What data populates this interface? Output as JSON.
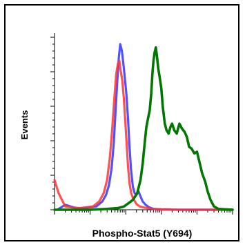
{
  "chart_data": {
    "type": "line",
    "subtype": "flow-cytometry-histogram",
    "title": "",
    "xlabel": "Phospho-Stat5 (Y694)",
    "ylabel": "Events",
    "x_scale": "log",
    "x_decades": [
      1,
      10,
      100,
      1000,
      10000,
      100000
    ],
    "xlim": [
      1,
      100000
    ],
    "ylim": [
      0,
      100
    ],
    "grid": false,
    "legend": "none",
    "colors": {
      "blue": "#3333ff",
      "red": "#ff3333",
      "green": "#007700"
    },
    "series": [
      {
        "color": "blue",
        "x": [
          1.2,
          2,
          4,
          7,
          10,
          15,
          22,
          28,
          34,
          40,
          46,
          52,
          58,
          64,
          70,
          78,
          86,
          94,
          104,
          116,
          126,
          140,
          158,
          178,
          200,
          230,
          260,
          300,
          360,
          450,
          600,
          1000,
          3000,
          100000
        ],
        "y": [
          0,
          3,
          1,
          1,
          1.5,
          2,
          5,
          9,
          15,
          25,
          40,
          60,
          78,
          92,
          100,
          96,
          88,
          80,
          70,
          55,
          40,
          25,
          14,
          10,
          9,
          11,
          8,
          5,
          3,
          1.5,
          0.5,
          0.2,
          0,
          0
        ]
      },
      {
        "color": "red",
        "x": [
          1,
          1.3,
          2,
          3,
          5,
          8,
          12,
          18,
          24,
          30,
          36,
          42,
          48,
          54,
          60,
          66,
          72,
          80,
          88,
          96,
          106,
          116,
          128,
          142,
          160,
          180,
          210,
          250,
          300,
          400,
          600,
          1000,
          3000,
          100000
        ],
        "y": [
          18,
          10,
          2,
          1.5,
          1,
          1.5,
          2,
          5,
          10,
          18,
          32,
          50,
          68,
          82,
          88,
          90,
          84,
          78,
          68,
          55,
          40,
          26,
          16,
          10,
          7,
          5,
          3,
          2,
          1.5,
          1,
          0.5,
          0.2,
          0,
          0
        ]
      },
      {
        "color": "green",
        "x": [
          1,
          10,
          30,
          60,
          90,
          120,
          160,
          210,
          260,
          300,
          340,
          380,
          420,
          470,
          520,
          560,
          600,
          650,
          700,
          760,
          820,
          900,
          1000,
          1100,
          1250,
          1400,
          1600,
          1800,
          2000,
          2300,
          2700,
          3200,
          3800,
          4500,
          5200,
          6000,
          7000,
          8500,
          10000,
          12000,
          14000,
          17000,
          20000,
          24000,
          30000,
          40000,
          100000
        ],
        "y": [
          0,
          0,
          0.5,
          1,
          2,
          4,
          6,
          10,
          18,
          28,
          40,
          50,
          55,
          60,
          70,
          82,
          90,
          95,
          98,
          92,
          85,
          80,
          73,
          62,
          52,
          48,
          46,
          50,
          52,
          48,
          46,
          52,
          49,
          47,
          44,
          38,
          37,
          34,
          35,
          28,
          22,
          17,
          11,
          6,
          2,
          0.5,
          0
        ]
      }
    ]
  }
}
